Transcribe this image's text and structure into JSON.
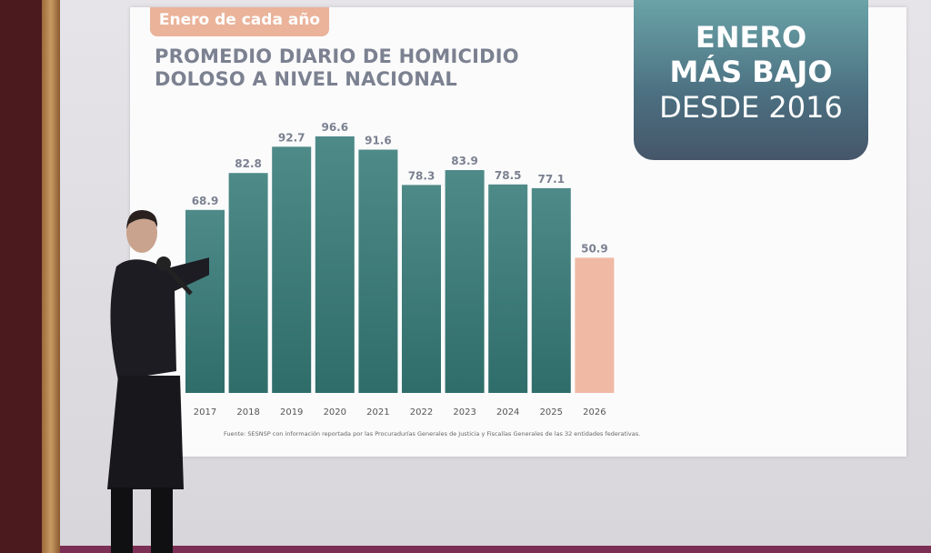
{
  "slide": {
    "tag": "Enero de cada año",
    "title_line1": "PROMEDIO DIARIO DE HOMICIDIO",
    "title_line2": "DOLOSO A NIVEL NACIONAL",
    "badge_line1": "ENERO",
    "badge_line2": "MÁS BAJO",
    "badge_line3": "DESDE 2016",
    "source": "Fuente: SESNSP con información reportada por las Procuradurías Generales de Justicia y Fiscalías Generales de las 32 entidades federativas."
  },
  "chart_data": {
    "type": "bar",
    "title": "PROMEDIO DIARIO DE HOMICIDIO DOLOSO A NIVEL NACIONAL",
    "subtitle": "Enero de cada año",
    "categories": [
      "2017",
      "2018",
      "2019",
      "2020",
      "2021",
      "2022",
      "2023",
      "2024",
      "2025",
      "2026"
    ],
    "values": [
      68.9,
      82.8,
      92.7,
      96.6,
      91.6,
      78.3,
      83.9,
      78.5,
      77.1,
      50.9
    ],
    "value_labels": [
      "68.9",
      "82.8",
      "92.7",
      "96.6",
      "91.6",
      "78.3",
      "83.9",
      "78.5",
      "77.1",
      "50.9"
    ],
    "xlabel": "",
    "ylabel": "",
    "ylim": [
      0,
      100
    ],
    "grid": false,
    "colors": {
      "bar_top": "#4e8a88",
      "bar_bottom": "#2f6d6a",
      "highlight": "#f0b9a4",
      "label": "#7b8190"
    },
    "highlight_category": "2026"
  }
}
